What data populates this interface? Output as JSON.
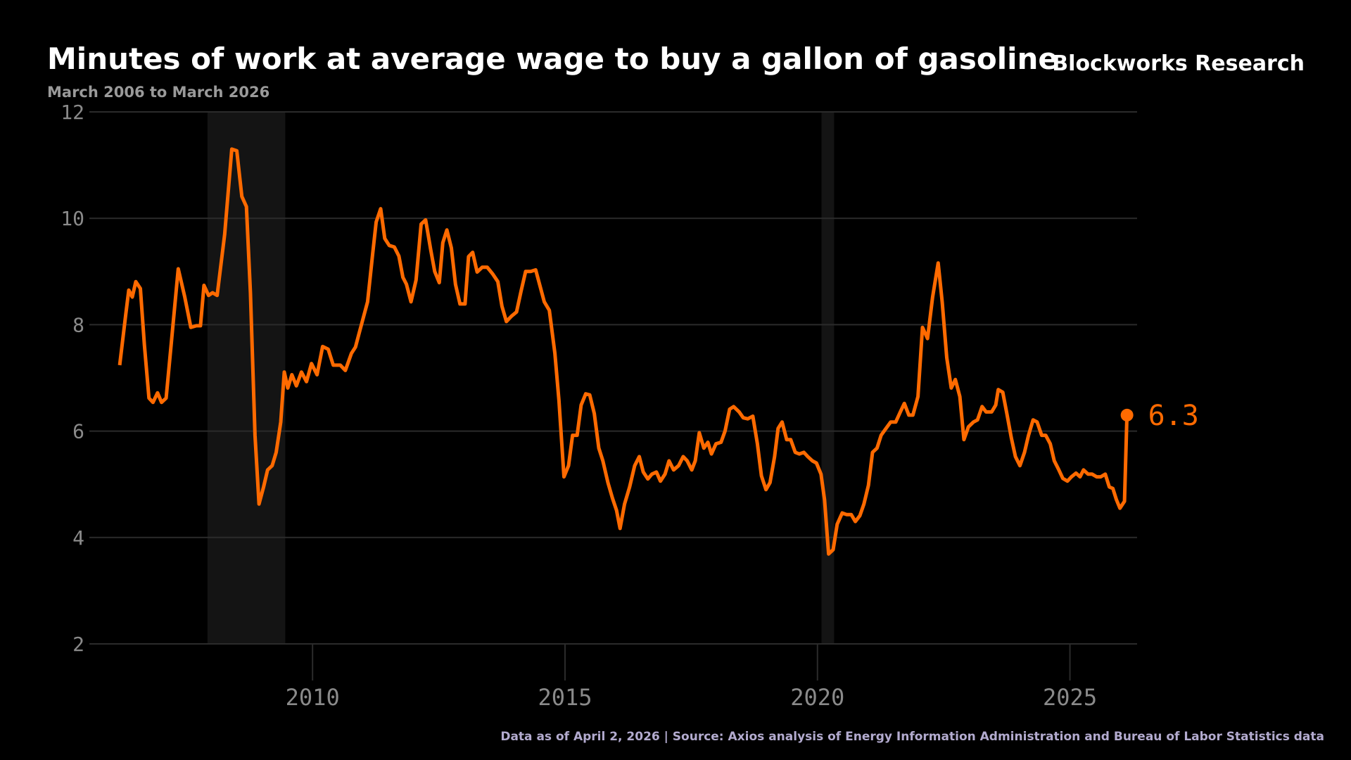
{
  "chart_data": {
    "type": "line",
    "title": "Minutes of work at average wage to buy a gallon of gasoline",
    "subtitle": "March 2006 to March 2026",
    "brand": "Blockworks Research",
    "source": "Data as of April 2, 2026 | Source: Axios analysis of Energy Information Administration and Bureau of Labor Statistics data",
    "xlim": [
      2005.58,
      2026.33
    ],
    "xticks": [
      2010,
      2015,
      2020,
      2025
    ],
    "ylim": [
      2,
      12
    ],
    "yticks": [
      2,
      4,
      6,
      8,
      10,
      12
    ],
    "grid": true,
    "shaded_ranges": [
      [
        2007.92,
        2009.46
      ],
      [
        2020.08,
        2020.33
      ]
    ],
    "x": [
      2006.18,
      2006.3,
      2006.36,
      2006.43,
      2006.5,
      2006.59,
      2006.67,
      2006.76,
      2006.84,
      2006.93,
      2007.01,
      2007.1,
      2007.2,
      2007.34,
      2007.47,
      2007.59,
      2007.7,
      2007.78,
      2007.85,
      2007.94,
      2008.02,
      2008.11,
      2008.26,
      2008.4,
      2008.5,
      2008.6,
      2008.69,
      2008.77,
      2008.86,
      2008.94,
      2009.03,
      2009.11,
      2009.2,
      2009.28,
      2009.37,
      2009.44,
      2009.51,
      2009.59,
      2009.68,
      2009.78,
      2009.88,
      2009.98,
      2010.09,
      2010.2,
      2010.31,
      2010.41,
      2010.55,
      2010.65,
      2010.77,
      2010.85,
      2010.94,
      2011.09,
      2011.19,
      2011.26,
      2011.35,
      2011.43,
      2011.52,
      2011.62,
      2011.71,
      2011.79,
      2011.86,
      2011.95,
      2012.05,
      2012.15,
      2012.24,
      2012.34,
      2012.42,
      2012.51,
      2012.58,
      2012.66,
      2012.75,
      2012.83,
      2012.92,
      2013.02,
      2013.09,
      2013.17,
      2013.26,
      2013.36,
      2013.46,
      2013.57,
      2013.67,
      2013.75,
      2013.84,
      2013.94,
      2014.04,
      2014.13,
      2014.22,
      2014.32,
      2014.42,
      2014.51,
      2014.59,
      2014.69,
      2014.8,
      2014.88,
      2014.98,
      2015.07,
      2015.15,
      2015.24,
      2015.32,
      2015.41,
      2015.49,
      2015.58,
      2015.67,
      2015.75,
      2015.85,
      2015.94,
      2016.02,
      2016.09,
      2016.18,
      2016.28,
      2016.38,
      2016.47,
      2016.55,
      2016.64,
      2016.72,
      2016.81,
      2016.89,
      2016.98,
      2017.06,
      2017.15,
      2017.25,
      2017.34,
      2017.42,
      2017.51,
      2017.58,
      2017.66,
      2017.75,
      2017.83,
      2017.9,
      2017.99,
      2018.09,
      2018.17,
      2018.26,
      2018.34,
      2018.45,
      2018.53,
      2018.62,
      2018.72,
      2018.81,
      2018.89,
      2018.98,
      2019.06,
      2019.15,
      2019.22,
      2019.3,
      2019.39,
      2019.47,
      2019.56,
      2019.64,
      2019.73,
      2019.81,
      2019.9,
      2019.98,
      2020.07,
      2020.14,
      2020.22,
      2020.31,
      2020.39,
      2020.49,
      2020.58,
      2020.67,
      2020.75,
      2020.84,
      2020.92,
      2021.01,
      2021.09,
      2021.18,
      2021.26,
      2021.35,
      2021.45,
      2021.55,
      2021.64,
      2021.72,
      2021.81,
      2021.89,
      2021.99,
      2022.08,
      2022.18,
      2022.28,
      2022.39,
      2022.47,
      2022.56,
      2022.65,
      2022.73,
      2022.82,
      2022.9,
      2022.99,
      2023.09,
      2023.17,
      2023.26,
      2023.34,
      2023.45,
      2023.53,
      2023.58,
      2023.67,
      2023.75,
      2023.84,
      2023.92,
      2024.01,
      2024.1,
      2024.18,
      2024.27,
      2024.35,
      2024.44,
      2024.52,
      2024.61,
      2024.69,
      2024.78,
      2024.86,
      2024.95,
      2025.03,
      2025.12,
      2025.2,
      2025.27,
      2025.36,
      2025.44,
      2025.53,
      2025.61,
      2025.7,
      2025.78,
      2025.85,
      2025.92,
      2025.99,
      2026.08,
      2026.13
    ],
    "series": [
      {
        "name": "Minutes of work",
        "color": "#ff6a00",
        "values": [
          7.24,
          8.19,
          8.65,
          8.52,
          8.81,
          8.68,
          7.62,
          6.62,
          6.54,
          6.72,
          6.54,
          6.62,
          7.62,
          9.05,
          8.52,
          7.95,
          7.98,
          7.98,
          8.74,
          8.55,
          8.6,
          8.55,
          9.7,
          11.3,
          11.27,
          10.41,
          10.22,
          8.6,
          5.92,
          4.63,
          4.95,
          5.27,
          5.35,
          5.6,
          6.17,
          7.11,
          6.81,
          7.06,
          6.85,
          7.11,
          6.93,
          7.27,
          7.06,
          7.59,
          7.54,
          7.24,
          7.24,
          7.14,
          7.46,
          7.58,
          7.9,
          8.43,
          9.33,
          9.93,
          10.18,
          9.62,
          9.49,
          9.46,
          9.29,
          8.89,
          8.76,
          8.43,
          8.84,
          9.89,
          9.97,
          9.41,
          9.0,
          8.79,
          9.54,
          9.78,
          9.44,
          8.76,
          8.39,
          8.39,
          9.28,
          9.36,
          8.99,
          9.08,
          9.08,
          8.95,
          8.81,
          8.35,
          8.06,
          8.16,
          8.24,
          8.63,
          9.0,
          9.0,
          9.03,
          8.71,
          8.43,
          8.27,
          7.46,
          6.57,
          5.14,
          5.35,
          5.92,
          5.92,
          6.49,
          6.7,
          6.68,
          6.33,
          5.68,
          5.44,
          5.03,
          4.74,
          4.51,
          4.17,
          4.63,
          4.95,
          5.35,
          5.52,
          5.23,
          5.1,
          5.19,
          5.23,
          5.06,
          5.19,
          5.44,
          5.27,
          5.35,
          5.52,
          5.44,
          5.27,
          5.44,
          5.97,
          5.68,
          5.79,
          5.57,
          5.76,
          5.79,
          6.0,
          6.41,
          6.46,
          6.36,
          6.25,
          6.23,
          6.28,
          5.76,
          5.16,
          4.9,
          5.03,
          5.52,
          6.05,
          6.17,
          5.84,
          5.84,
          5.6,
          5.57,
          5.6,
          5.52,
          5.44,
          5.4,
          5.19,
          4.71,
          3.69,
          3.77,
          4.25,
          4.46,
          4.43,
          4.43,
          4.3,
          4.41,
          4.63,
          4.98,
          5.6,
          5.68,
          5.92,
          6.04,
          6.17,
          6.17,
          6.36,
          6.52,
          6.3,
          6.3,
          6.65,
          7.95,
          7.74,
          8.52,
          9.16,
          8.43,
          7.38,
          6.81,
          6.97,
          6.65,
          5.84,
          6.08,
          6.17,
          6.21,
          6.46,
          6.36,
          6.36,
          6.49,
          6.78,
          6.73,
          6.33,
          5.87,
          5.52,
          5.35,
          5.6,
          5.92,
          6.21,
          6.17,
          5.92,
          5.92,
          5.76,
          5.44,
          5.27,
          5.11,
          5.06,
          5.14,
          5.21,
          5.14,
          5.27,
          5.19,
          5.19,
          5.14,
          5.14,
          5.19,
          4.95,
          4.92,
          4.71,
          4.55,
          4.68,
          6.3
        ]
      }
    ]
  }
}
